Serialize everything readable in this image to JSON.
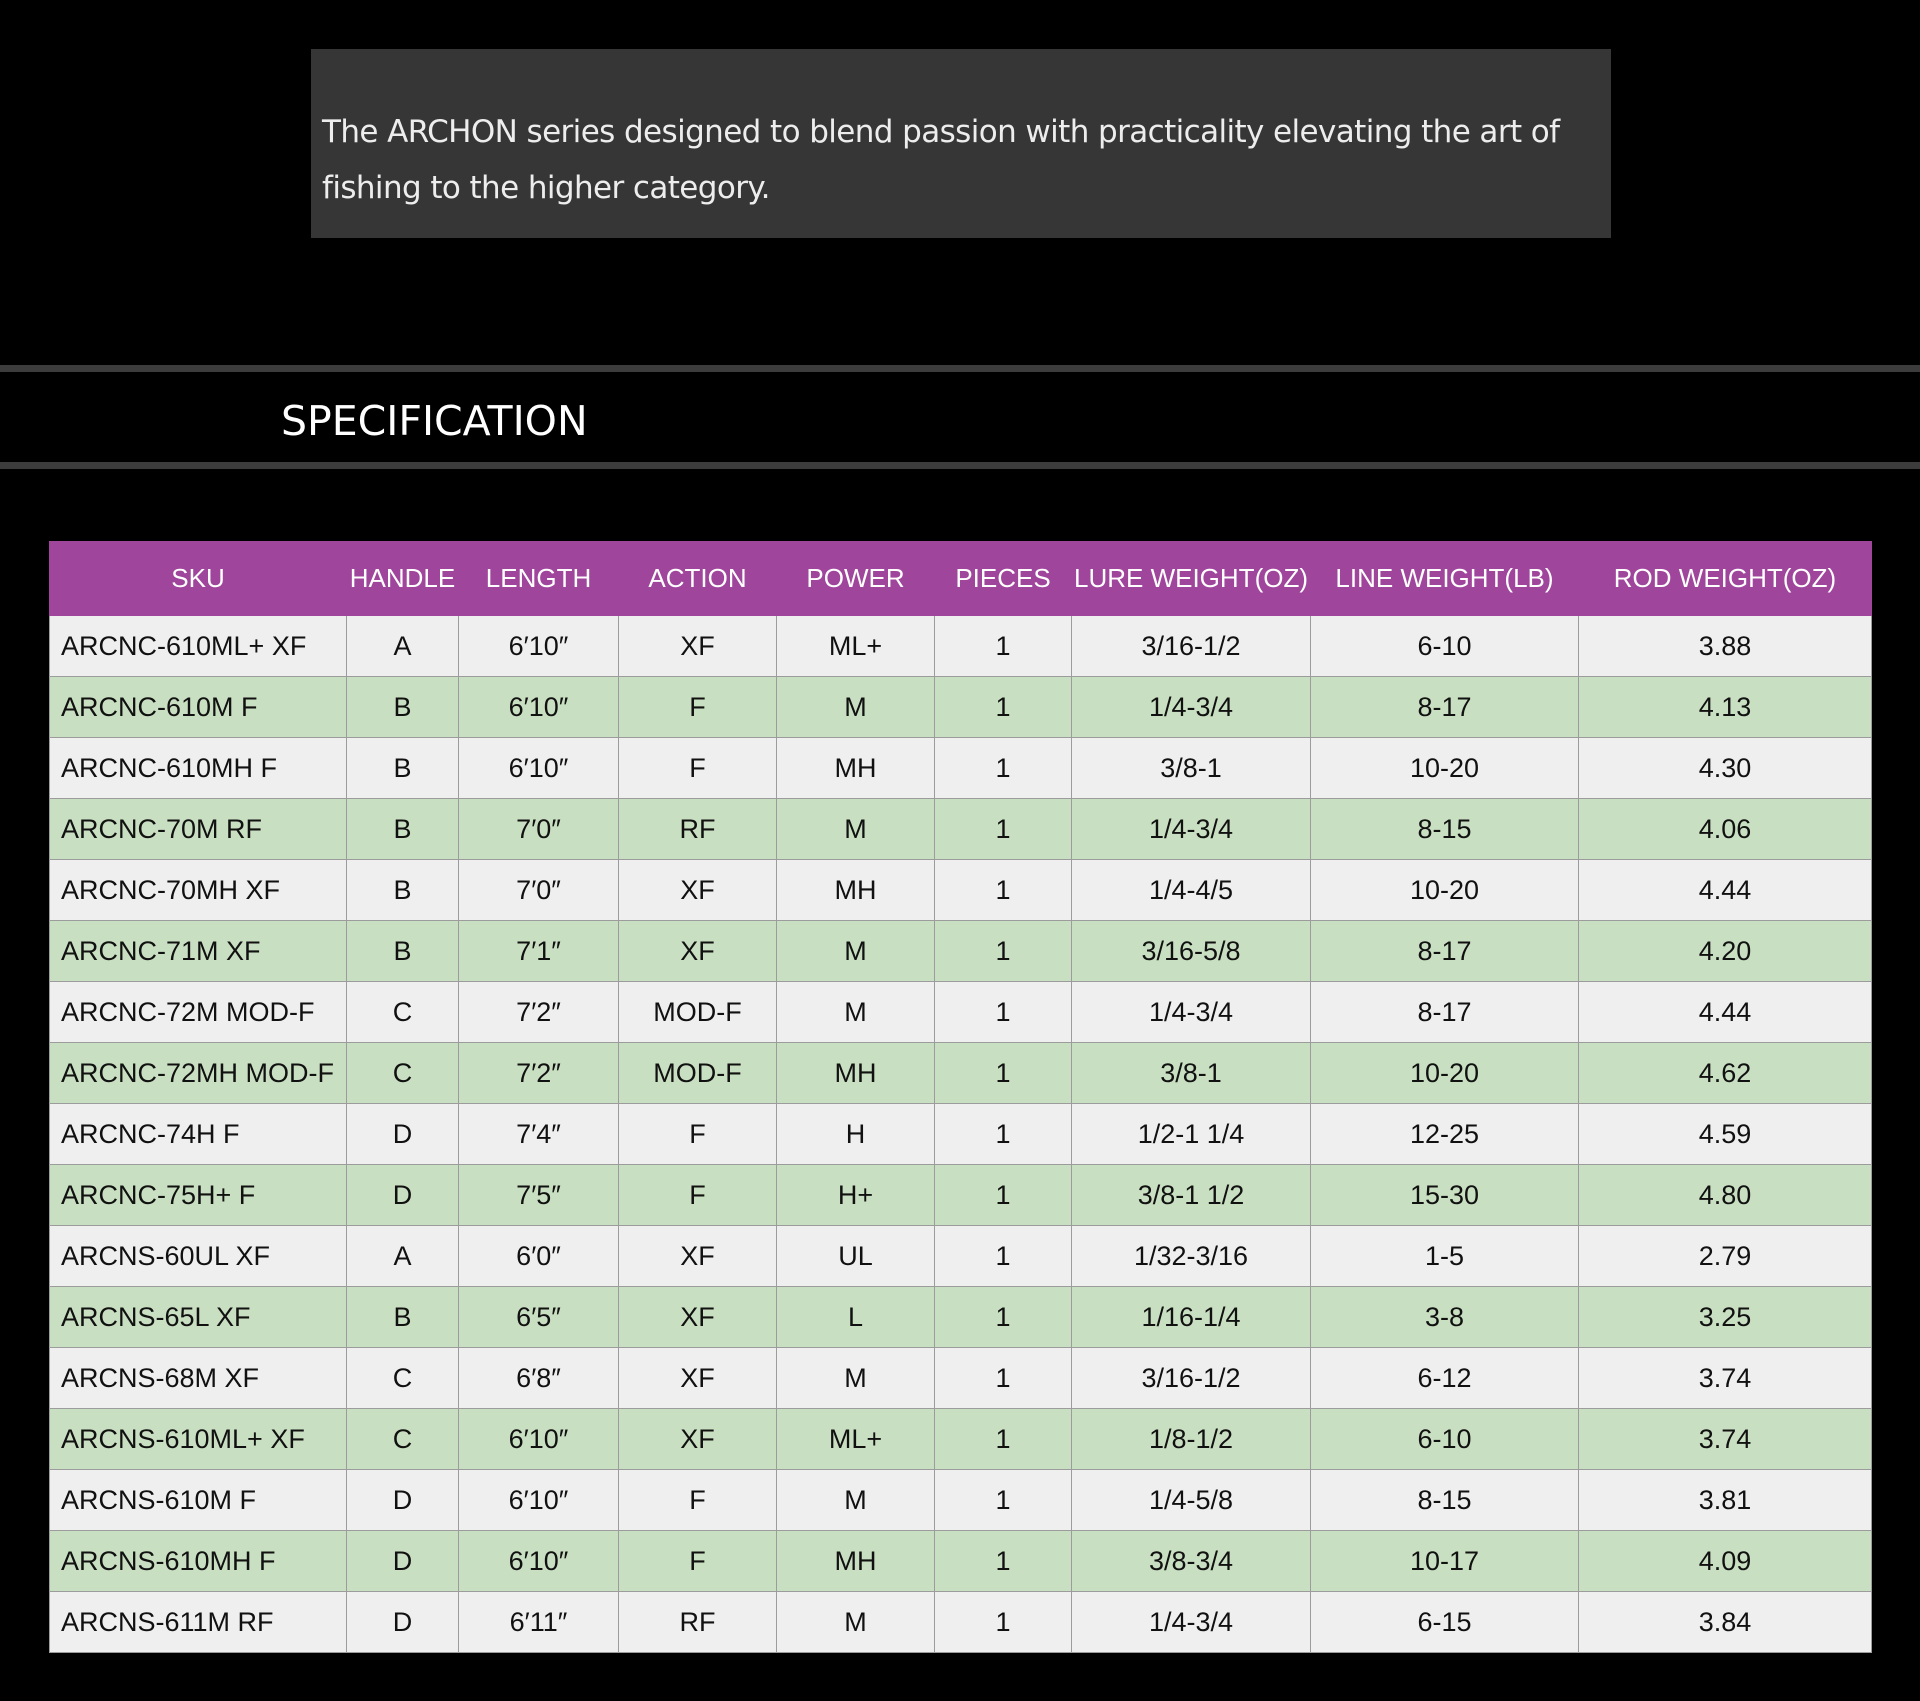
{
  "intro": {
    "text": "The ARCHON series designed to blend passion with practicality elevating the art of fishing to the higher category."
  },
  "section": {
    "title": "SPECIFICATION"
  },
  "colors": {
    "page_background": "#000000",
    "intro_background": "#363636",
    "header_purple": "#a0459c",
    "row_light": "#efefef",
    "row_green": "#c9dfc1",
    "rule_gray": "#3c3c3c"
  },
  "table": {
    "headers": [
      "SKU",
      "HANDLE",
      "LENGTH",
      "ACTION",
      "POWER",
      "PIECES",
      "LURE WEIGHT(OZ)",
      "LINE  WEIGHT(LB)",
      "ROD  WEIGHT(OZ)"
    ],
    "rows": [
      [
        "ARCNC-610ML+ XF",
        "A",
        "6′10″",
        "XF",
        "ML+",
        "1",
        "3/16-1/2",
        "6-10",
        "3.88"
      ],
      [
        "ARCNC-610M F",
        "B",
        "6′10″",
        "F",
        "M",
        "1",
        "1/4-3/4",
        "8-17",
        "4.13"
      ],
      [
        "ARCNC-610MH F",
        "B",
        "6′10″",
        "F",
        "MH",
        "1",
        "3/8-1",
        "10-20",
        "4.30"
      ],
      [
        "ARCNC-70M RF",
        "B",
        "7′0″",
        "RF",
        "M",
        "1",
        "1/4-3/4",
        "8-15",
        "4.06"
      ],
      [
        "ARCNC-70MH XF",
        "B",
        "7′0″",
        "XF",
        "MH",
        "1",
        "1/4-4/5",
        "10-20",
        "4.44"
      ],
      [
        "ARCNC-71M XF",
        "B",
        "7′1″",
        "XF",
        "M",
        "1",
        "3/16-5/8",
        "8-17",
        "4.20"
      ],
      [
        "ARCNC-72M MOD-F",
        "C",
        "7′2″",
        "MOD-F",
        "M",
        "1",
        "1/4-3/4",
        "8-17",
        "4.44"
      ],
      [
        "ARCNC-72MH MOD-F",
        "C",
        "7′2″",
        "MOD-F",
        "MH",
        "1",
        "3/8-1",
        "10-20",
        "4.62"
      ],
      [
        "ARCNC-74H F",
        "D",
        "7′4″",
        "F",
        "H",
        "1",
        "1/2-1 1/4",
        "12-25",
        "4.59"
      ],
      [
        "ARCNC-75H+ F",
        "D",
        "7′5″",
        "F",
        "H+",
        "1",
        "3/8-1 1/2",
        "15-30",
        "4.80"
      ],
      [
        "ARCNS-60UL XF",
        "A",
        "6′0″",
        "XF",
        "UL",
        "1",
        "1/32-3/16",
        "1-5",
        "2.79"
      ],
      [
        "ARCNS-65L XF",
        "B",
        "6′5″",
        "XF",
        "L",
        "1",
        "1/16-1/4",
        "3-8",
        "3.25"
      ],
      [
        "ARCNS-68M XF",
        "C",
        "6′8″",
        "XF",
        "M",
        "1",
        "3/16-1/2",
        "6-12",
        "3.74"
      ],
      [
        "ARCNS-610ML+ XF",
        "C",
        "6′10″",
        "XF",
        "ML+",
        "1",
        "1/8-1/2",
        "6-10",
        "3.74"
      ],
      [
        "ARCNS-610M F",
        "D",
        "6′10″",
        "F",
        "M",
        "1",
        "1/4-5/8",
        "8-15",
        "3.81"
      ],
      [
        "ARCNS-610MH F",
        "D",
        "6′10″",
        "F",
        "MH",
        "1",
        "3/8-3/4",
        "10-17",
        "4.09"
      ],
      [
        "ARCNS-611M RF",
        "D",
        "6′11″",
        "RF",
        "M",
        "1",
        "1/4-3/4",
        "6-15",
        "3.84"
      ]
    ]
  }
}
